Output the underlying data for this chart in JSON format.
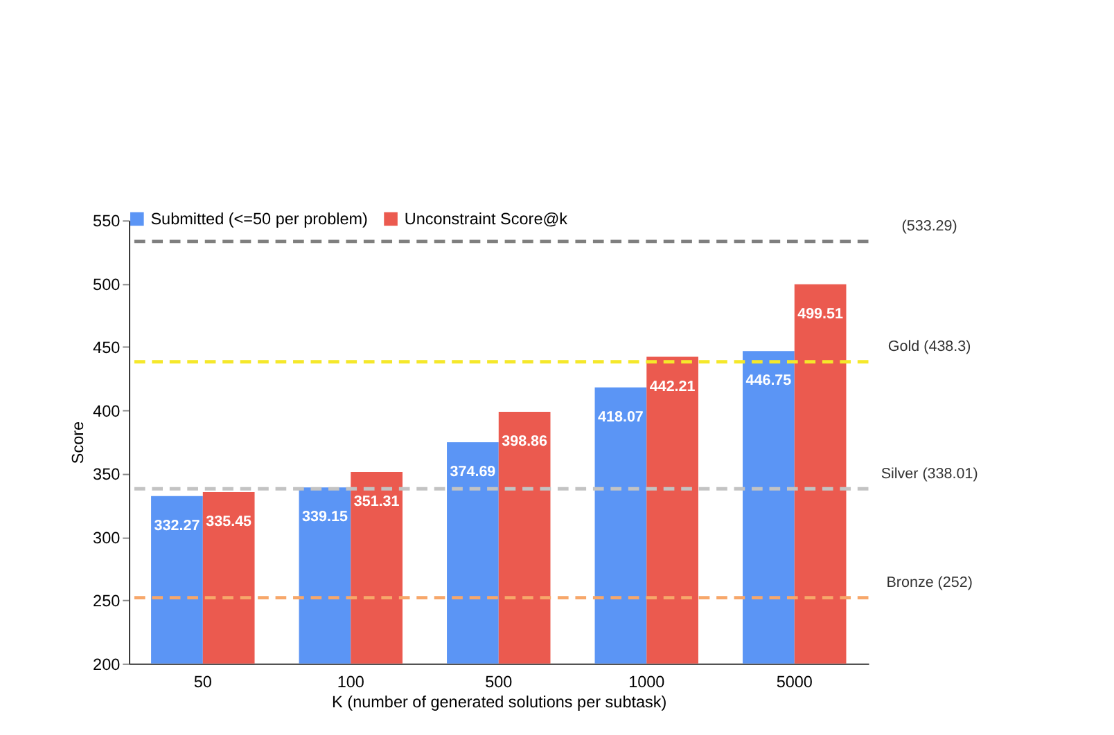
{
  "chart_data": {
    "type": "bar",
    "xlabel": "K (number of  generated solutions per subtask)",
    "ylabel": "Score",
    "categories": [
      "50",
      "100",
      "500",
      "1000",
      "5000"
    ],
    "series": [
      {
        "name": "Submitted (<=50 per problem)",
        "color": "#5b95f5",
        "values": [
          332.27,
          339.15,
          374.69,
          418.07,
          446.75
        ]
      },
      {
        "name": "Unconstraint Score@k",
        "color": "#eb5a4f",
        "values": [
          335.45,
          351.31,
          398.86,
          442.21,
          499.51
        ]
      }
    ],
    "ylim": [
      200,
      550
    ],
    "yticks": [
      200,
      250,
      300,
      350,
      400,
      450,
      500,
      550
    ],
    "ref_lines": [
      {
        "axis": "y",
        "value": 533.29,
        "label": "(533.29)",
        "color": "#7f7f7f",
        "line_style": "dashed"
      },
      {
        "axis": "y",
        "value": 438.3,
        "label": "Gold (438.3)",
        "color": "#f5e82a",
        "line_style": "dashed"
      },
      {
        "axis": "y",
        "value": 338.01,
        "label": "Silver (338.01)",
        "color": "#c3c3c3",
        "line_style": "dashed"
      },
      {
        "axis": "y",
        "value": 252,
        "label": "Bronze (252)",
        "color": "#f7a76a",
        "line_style": "dashed"
      }
    ],
    "data_labels": true,
    "grid": false,
    "legend": "top"
  }
}
